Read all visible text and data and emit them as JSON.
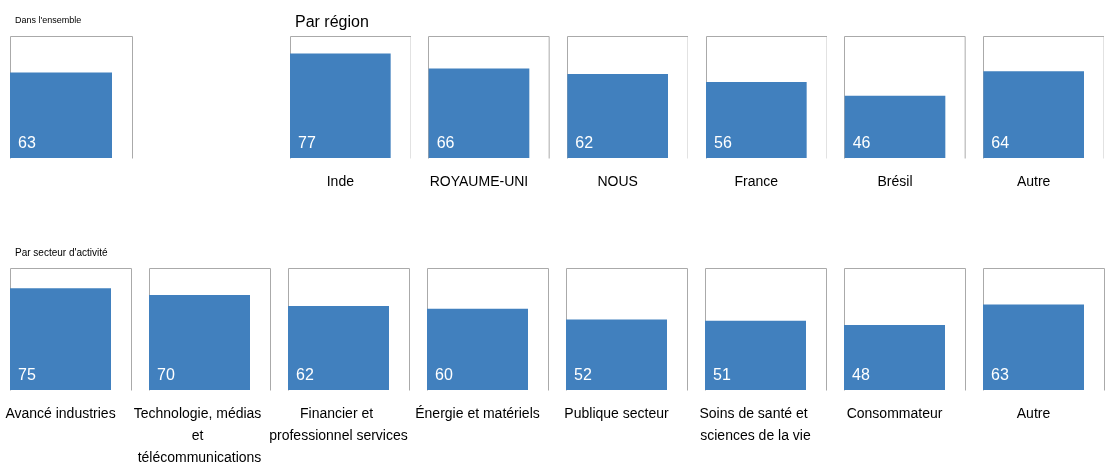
{
  "chart_data": [
    {
      "type": "bar",
      "title": "Dans l'ensemble",
      "categories": [
        null
      ],
      "values": [
        63
      ],
      "color": "#4180be",
      "ylim": [
        0,
        90
      ],
      "data_labels": true
    },
    {
      "type": "bar",
      "title": "Par région",
      "categories": [
        "Inde",
        "ROYAUME-UNI",
        "NOUS",
        "France",
        "Brésil",
        "Autre"
      ],
      "values": [
        77,
        66,
        62,
        56,
        46,
        64
      ],
      "color": "#4180be",
      "ylim": [
        0,
        90
      ],
      "data_labels": true
    },
    {
      "type": "bar",
      "title": "Par secteur d'activité",
      "categories": [
        "Avancé industries",
        "Technologie, médias et télécommunications",
        "Financier et professionnel services",
        "Énergie et matériels",
        "Publique secteur",
        "Soins de santé et sciences de la vie",
        "Consommateur",
        "Autre"
      ],
      "values": [
        75,
        70,
        62,
        60,
        52,
        51,
        48,
        63
      ],
      "color": "#4180be",
      "ylim": [
        0,
        90
      ],
      "data_labels": true
    }
  ]
}
